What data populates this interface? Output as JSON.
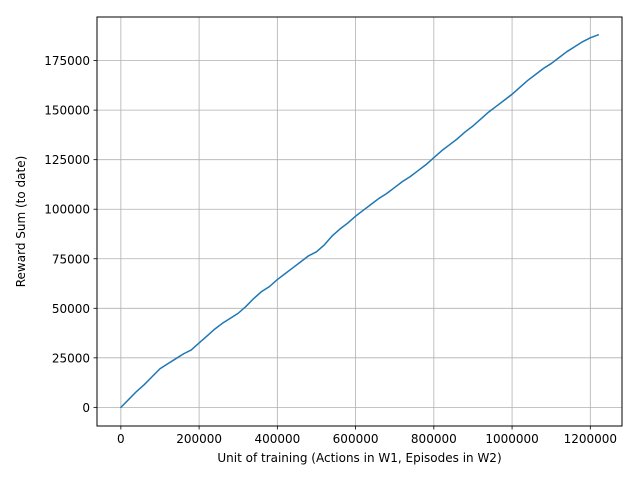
{
  "chart_data": {
    "type": "line",
    "title": "",
    "xlabel": "Unit of training (Actions in W1, Episodes in W2)",
    "ylabel": "Reward Sum (to date)",
    "xlim": [
      -61000,
      1281000
    ],
    "ylim": [
      -9400,
      197000
    ],
    "grid": true,
    "x_ticks": [
      0,
      200000,
      400000,
      600000,
      800000,
      1000000,
      1200000
    ],
    "x_tick_labels": [
      "0",
      "200000",
      "400000",
      "600000",
      "800000",
      "1000000",
      "1200000"
    ],
    "y_ticks": [
      0,
      25000,
      50000,
      75000,
      100000,
      125000,
      150000,
      175000
    ],
    "y_tick_labels": [
      "0",
      "25000",
      "50000",
      "75000",
      "100000",
      "125000",
      "150000",
      "175000"
    ],
    "series": [
      {
        "color": "#1f77b4",
        "x": [
          0,
          20000,
          40000,
          60000,
          80000,
          100000,
          120000,
          140000,
          160000,
          180000,
          200000,
          220000,
          240000,
          260000,
          280000,
          300000,
          320000,
          340000,
          360000,
          380000,
          400000,
          420000,
          440000,
          460000,
          480000,
          500000,
          520000,
          540000,
          560000,
          580000,
          600000,
          620000,
          640000,
          660000,
          680000,
          700000,
          720000,
          740000,
          760000,
          780000,
          800000,
          820000,
          840000,
          860000,
          880000,
          900000,
          920000,
          940000,
          960000,
          980000,
          1000000,
          1020000,
          1040000,
          1060000,
          1080000,
          1100000,
          1120000,
          1140000,
          1160000,
          1180000,
          1200000,
          1220000
        ],
        "y": [
          0,
          4000,
          8000,
          11500,
          15500,
          19500,
          22000,
          24500,
          27000,
          29000,
          32500,
          36000,
          39500,
          42500,
          45000,
          47500,
          51000,
          55000,
          58500,
          61000,
          64500,
          67500,
          70500,
          73500,
          76500,
          78500,
          82000,
          86500,
          90000,
          93000,
          96500,
          99500,
          102500,
          105500,
          108000,
          111000,
          114000,
          116500,
          119500,
          122500,
          126000,
          129500,
          132500,
          135500,
          139000,
          142000,
          145500,
          149000,
          152000,
          155000,
          158000,
          161500,
          165000,
          168000,
          171000,
          173500,
          176500,
          179500,
          182000,
          184500,
          186500,
          188000
        ]
      }
    ]
  }
}
